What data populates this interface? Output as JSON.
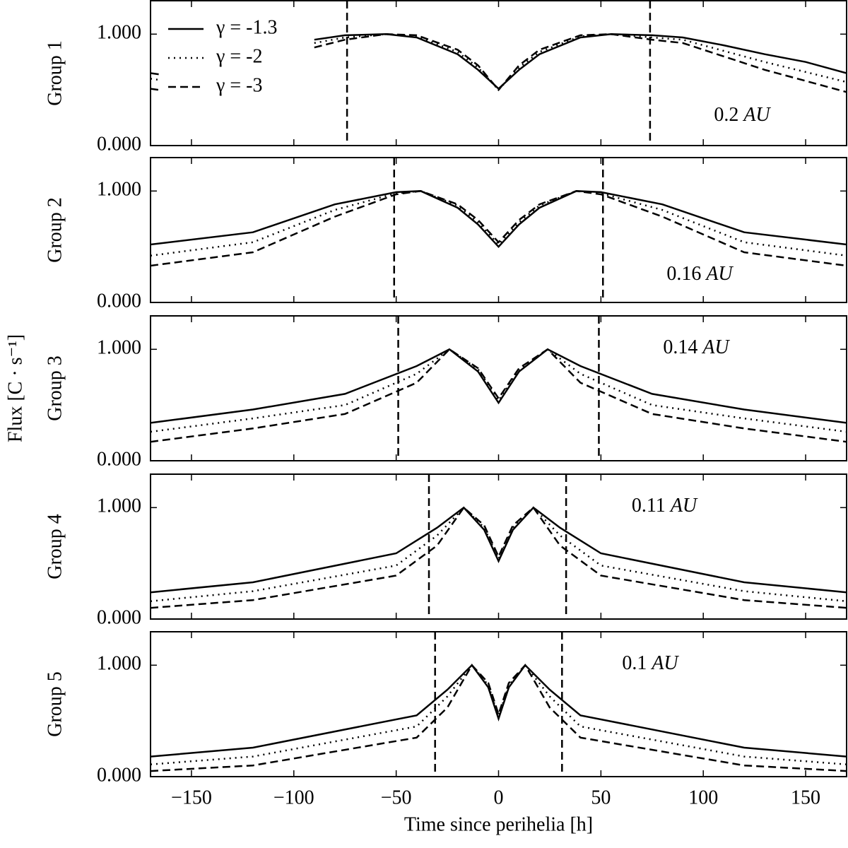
{
  "chart_data": [
    {
      "type": "line",
      "ylabel": "Group 1",
      "annotation_value": "0.2",
      "annotation_unit": "AU",
      "legend": "upper left",
      "xlim": [
        -170,
        170
      ],
      "ylim": [
        0,
        1.3
      ],
      "yticks": [
        {
          "value": 0,
          "label": "0.000"
        },
        {
          "value": 1,
          "label": "1.000"
        }
      ],
      "vlines": [
        -74,
        74
      ],
      "x": [
        -170,
        -166,
        -130,
        -90,
        -75,
        -55,
        -40,
        -20,
        -10,
        0,
        10,
        20,
        40,
        55,
        75,
        90,
        110,
        130,
        150,
        170
      ],
      "series": [
        {
          "name": "γ = -1.3",
          "color": "#000000",
          "dash": "solid",
          "values": [
            0.65,
            0.64,
            null,
            0.95,
            0.99,
            1.0,
            0.97,
            0.82,
            0.68,
            0.51,
            0.68,
            0.82,
            0.97,
            1.0,
            0.99,
            0.97,
            0.9,
            0.82,
            0.75,
            0.65
          ]
        },
        {
          "name": "γ = -2",
          "color": "#000000",
          "dash": "dotted",
          "values": [
            0.6,
            0.59,
            null,
            0.92,
            0.97,
            1.0,
            0.98,
            0.84,
            0.7,
            0.5,
            0.7,
            0.84,
            0.98,
            1.0,
            0.97,
            0.95,
            0.85,
            0.75,
            0.66,
            0.57
          ]
        },
        {
          "name": "γ = -3",
          "color": "#000000",
          "dash": "dashed",
          "values": [
            0.51,
            0.5,
            null,
            0.88,
            0.95,
            1.0,
            0.99,
            0.86,
            0.72,
            0.5,
            0.72,
            0.86,
            0.99,
            1.0,
            0.95,
            0.92,
            0.8,
            0.68,
            0.58,
            0.48
          ]
        }
      ]
    },
    {
      "type": "line",
      "ylabel": "Group 2",
      "annotation_value": "0.16",
      "annotation_unit": "AU",
      "xlim": [
        -170,
        170
      ],
      "ylim": [
        0,
        1.3
      ],
      "yticks": [
        {
          "value": 0,
          "label": "0.000"
        },
        {
          "value": 1,
          "label": "1.000"
        }
      ],
      "vlines": [
        -51,
        51
      ],
      "x": [
        -170,
        -120,
        -80,
        -50,
        -38,
        -20,
        -10,
        0,
        10,
        20,
        38,
        50,
        80,
        120,
        170
      ],
      "series": [
        {
          "color": "#000000",
          "dash": "solid",
          "values": [
            0.52,
            0.63,
            0.88,
            0.99,
            1.0,
            0.85,
            0.7,
            0.5,
            0.7,
            0.85,
            1.0,
            0.99,
            0.88,
            0.63,
            0.52
          ]
        },
        {
          "color": "#000000",
          "dash": "dotted",
          "values": [
            0.42,
            0.54,
            0.83,
            0.98,
            1.0,
            0.87,
            0.72,
            0.52,
            0.72,
            0.87,
            1.0,
            0.98,
            0.83,
            0.54,
            0.42
          ]
        },
        {
          "color": "#000000",
          "dash": "dashed",
          "values": [
            0.33,
            0.45,
            0.77,
            0.97,
            1.0,
            0.88,
            0.74,
            0.54,
            0.74,
            0.88,
            1.0,
            0.97,
            0.77,
            0.45,
            0.33
          ]
        }
      ]
    },
    {
      "type": "line",
      "ylabel": "Group 3",
      "annotation_value": "0.14",
      "annotation_unit": "AU",
      "shared_ylabel": "Flux [C · s⁻¹]",
      "xlim": [
        -170,
        170
      ],
      "ylim": [
        0,
        1.3
      ],
      "yticks": [
        {
          "value": 0,
          "label": "0.000"
        },
        {
          "value": 1,
          "label": "1.000"
        }
      ],
      "vlines": [
        -49,
        49
      ],
      "x": [
        -170,
        -120,
        -75,
        -40,
        -24,
        -10,
        0,
        10,
        24,
        40,
        75,
        120,
        170
      ],
      "series": [
        {
          "color": "#000000",
          "dash": "solid",
          "values": [
            0.34,
            0.46,
            0.6,
            0.85,
            1.0,
            0.8,
            0.52,
            0.8,
            1.0,
            0.85,
            0.6,
            0.46,
            0.34
          ]
        },
        {
          "color": "#000000",
          "dash": "dotted",
          "values": [
            0.26,
            0.38,
            0.5,
            0.78,
            1.0,
            0.82,
            0.54,
            0.82,
            1.0,
            0.78,
            0.5,
            0.38,
            0.26
          ]
        },
        {
          "color": "#000000",
          "dash": "dashed",
          "values": [
            0.17,
            0.29,
            0.42,
            0.7,
            1.0,
            0.83,
            0.56,
            0.83,
            1.0,
            0.7,
            0.42,
            0.29,
            0.17
          ]
        }
      ]
    },
    {
      "type": "line",
      "ylabel": "Group 4",
      "annotation_value": "0.11",
      "annotation_unit": "AU",
      "xlim": [
        -170,
        170
      ],
      "ylim": [
        0,
        1.3
      ],
      "yticks": [
        {
          "value": 0,
          "label": "0.000"
        },
        {
          "value": 1,
          "label": "1.000"
        }
      ],
      "vlines": [
        -34,
        33
      ],
      "x": [
        -170,
        -120,
        -50,
        -30,
        -17,
        -7,
        0,
        7,
        17,
        30,
        50,
        120,
        170
      ],
      "series": [
        {
          "color": "#000000",
          "dash": "solid",
          "values": [
            0.24,
            0.33,
            0.59,
            0.82,
            1.0,
            0.8,
            0.52,
            0.8,
            1.0,
            0.82,
            0.59,
            0.33,
            0.24
          ]
        },
        {
          "color": "#000000",
          "dash": "dotted",
          "values": [
            0.16,
            0.25,
            0.48,
            0.75,
            1.0,
            0.82,
            0.54,
            0.82,
            1.0,
            0.75,
            0.48,
            0.25,
            0.16
          ]
        },
        {
          "color": "#000000",
          "dash": "dashed",
          "values": [
            0.1,
            0.17,
            0.39,
            0.66,
            1.0,
            0.84,
            0.56,
            0.84,
            1.0,
            0.66,
            0.39,
            0.17,
            0.1
          ]
        }
      ]
    },
    {
      "type": "line",
      "ylabel": "Group 5",
      "annotation_value": "0.1",
      "annotation_unit": "AU",
      "xlabel": "Time since perihelia [h]",
      "xlim": [
        -170,
        170
      ],
      "ylim": [
        0,
        1.3
      ],
      "yticks": [
        {
          "value": 0,
          "label": "0.000"
        },
        {
          "value": 1,
          "label": "1.000"
        }
      ],
      "vlines": [
        -31,
        31
      ],
      "xticks": [
        {
          "value": -150,
          "label": "−150"
        },
        {
          "value": -100,
          "label": "−100"
        },
        {
          "value": -50,
          "label": "−50"
        },
        0,
        50,
        100,
        150
      ],
      "x": [
        -170,
        -120,
        -40,
        -25,
        -13,
        -5,
        0,
        5,
        13,
        25,
        40,
        120,
        170
      ],
      "series": [
        {
          "color": "#000000",
          "dash": "solid",
          "values": [
            0.18,
            0.26,
            0.55,
            0.78,
            1.0,
            0.8,
            0.52,
            0.8,
            1.0,
            0.78,
            0.55,
            0.26,
            0.18
          ]
        },
        {
          "color": "#000000",
          "dash": "dotted",
          "values": [
            0.11,
            0.18,
            0.45,
            0.72,
            1.0,
            0.82,
            0.54,
            0.82,
            1.0,
            0.72,
            0.45,
            0.18,
            0.11
          ]
        },
        {
          "color": "#000000",
          "dash": "dashed",
          "values": [
            0.05,
            0.1,
            0.35,
            0.62,
            1.0,
            0.84,
            0.56,
            0.84,
            1.0,
            0.62,
            0.35,
            0.1,
            0.05
          ]
        }
      ]
    }
  ]
}
